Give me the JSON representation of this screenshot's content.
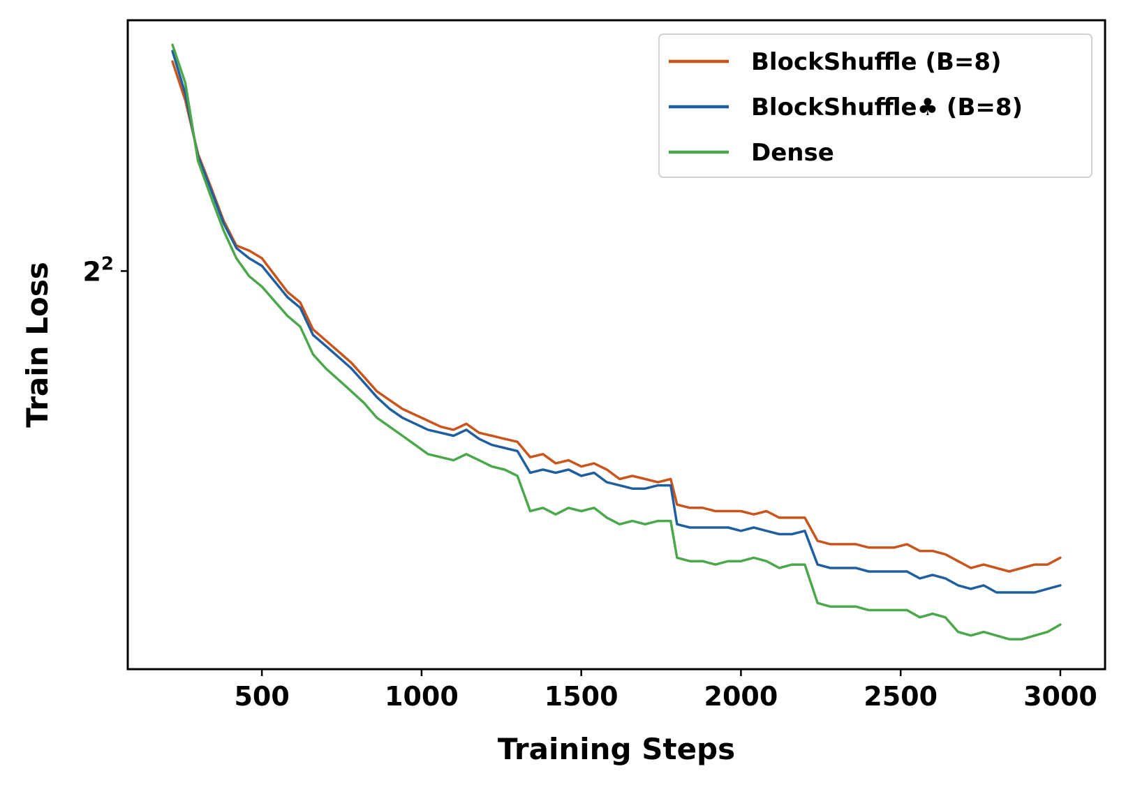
{
  "chart_data": {
    "type": "line",
    "xlabel": "Training Steps",
    "ylabel": "Train Loss",
    "xlim": [
      80,
      3140
    ],
    "ylim": [
      2.72,
      5.1
    ],
    "yscale": "log2",
    "xticks": [
      500,
      1000,
      1500,
      2000,
      2500,
      3000
    ],
    "xtick_labels": [
      "500",
      "1000",
      "1500",
      "2000",
      "2500",
      "3000"
    ],
    "yticks": [
      4
    ],
    "ytick_labels": [
      {
        "base": "2",
        "exp": "2"
      }
    ],
    "grid": false,
    "legend_position": "top-right",
    "colors": {
      "BlockShuffle (B=8)": "#c9541c",
      "BlockShuffle♣ (B=8)": "#1f5fa0",
      "Dense": "#4aa84a"
    },
    "series": [
      {
        "name": "BlockShuffle (B=8)",
        "x": [
          220,
          260,
          300,
          340,
          380,
          420,
          460,
          500,
          580,
          620,
          660,
          700,
          740,
          780,
          820,
          860,
          900,
          940,
          980,
          1020,
          1060,
          1100,
          1140,
          1180,
          1220,
          1260,
          1300,
          1340,
          1380,
          1420,
          1460,
          1500,
          1540,
          1580,
          1620,
          1660,
          1700,
          1740,
          1780,
          1800,
          1840,
          1880,
          1920,
          1960,
          2000,
          2040,
          2080,
          2120,
          2160,
          2200,
          2240,
          2280,
          2320,
          2360,
          2400,
          2440,
          2480,
          2520,
          2560,
          2600,
          2640,
          2680,
          2720,
          2760,
          2800,
          2840,
          2880,
          2920,
          2960,
          3000
        ],
        "values": [
          4.9,
          4.72,
          4.48,
          4.34,
          4.2,
          4.1,
          4.08,
          4.05,
          3.92,
          3.88,
          3.78,
          3.74,
          3.7,
          3.66,
          3.61,
          3.56,
          3.53,
          3.5,
          3.48,
          3.46,
          3.44,
          3.43,
          3.45,
          3.42,
          3.41,
          3.4,
          3.39,
          3.34,
          3.35,
          3.32,
          3.33,
          3.31,
          3.32,
          3.3,
          3.27,
          3.28,
          3.27,
          3.26,
          3.27,
          3.19,
          3.18,
          3.18,
          3.17,
          3.17,
          3.17,
          3.16,
          3.17,
          3.15,
          3.15,
          3.15,
          3.08,
          3.07,
          3.07,
          3.07,
          3.06,
          3.06,
          3.06,
          3.07,
          3.05,
          3.05,
          3.04,
          3.02,
          3.0,
          3.01,
          3.0,
          2.99,
          3.0,
          3.01,
          3.01,
          3.03
        ]
      },
      {
        "name": "BlockShuffle♣ (B=8)",
        "x": [
          220,
          260,
          300,
          340,
          380,
          420,
          460,
          500,
          580,
          620,
          660,
          700,
          740,
          780,
          820,
          860,
          900,
          940,
          980,
          1020,
          1060,
          1100,
          1140,
          1180,
          1220,
          1260,
          1300,
          1340,
          1380,
          1420,
          1460,
          1500,
          1540,
          1580,
          1620,
          1660,
          1700,
          1740,
          1780,
          1800,
          1840,
          1880,
          1920,
          1960,
          2000,
          2040,
          2080,
          2120,
          2160,
          2200,
          2240,
          2280,
          2320,
          2360,
          2400,
          2440,
          2480,
          2520,
          2560,
          2600,
          2640,
          2680,
          2720,
          2760,
          2800,
          2840,
          2880,
          2920,
          2960,
          3000
        ],
        "values": [
          4.95,
          4.75,
          4.47,
          4.33,
          4.19,
          4.09,
          4.05,
          4.02,
          3.9,
          3.86,
          3.76,
          3.72,
          3.68,
          3.64,
          3.59,
          3.54,
          3.5,
          3.47,
          3.45,
          3.43,
          3.42,
          3.41,
          3.43,
          3.4,
          3.38,
          3.37,
          3.36,
          3.29,
          3.3,
          3.29,
          3.3,
          3.28,
          3.29,
          3.26,
          3.25,
          3.24,
          3.24,
          3.25,
          3.25,
          3.13,
          3.12,
          3.12,
          3.12,
          3.12,
          3.11,
          3.12,
          3.11,
          3.1,
          3.1,
          3.11,
          3.01,
          3.0,
          3.0,
          3.0,
          2.99,
          2.99,
          2.99,
          2.99,
          2.97,
          2.98,
          2.97,
          2.95,
          2.94,
          2.95,
          2.93,
          2.93,
          2.93,
          2.93,
          2.94,
          2.95
        ]
      },
      {
        "name": "Dense",
        "x": [
          220,
          260,
          300,
          340,
          380,
          420,
          460,
          500,
          580,
          620,
          660,
          700,
          740,
          780,
          820,
          860,
          900,
          940,
          980,
          1020,
          1060,
          1100,
          1140,
          1180,
          1220,
          1260,
          1300,
          1340,
          1380,
          1420,
          1460,
          1500,
          1540,
          1580,
          1620,
          1660,
          1700,
          1740,
          1780,
          1800,
          1840,
          1880,
          1920,
          1960,
          2000,
          2040,
          2080,
          2120,
          2160,
          2200,
          2240,
          2280,
          2320,
          2360,
          2400,
          2440,
          2480,
          2520,
          2560,
          2600,
          2640,
          2680,
          2720,
          2760,
          2800,
          2840,
          2880,
          2920,
          2960,
          3000
        ],
        "values": [
          4.98,
          4.8,
          4.45,
          4.3,
          4.16,
          4.05,
          3.98,
          3.94,
          3.83,
          3.79,
          3.69,
          3.64,
          3.6,
          3.56,
          3.52,
          3.47,
          3.44,
          3.41,
          3.38,
          3.35,
          3.34,
          3.33,
          3.35,
          3.33,
          3.31,
          3.3,
          3.28,
          3.17,
          3.18,
          3.16,
          3.18,
          3.17,
          3.18,
          3.15,
          3.13,
          3.14,
          3.13,
          3.14,
          3.14,
          3.03,
          3.02,
          3.02,
          3.01,
          3.02,
          3.02,
          3.03,
          3.02,
          3.0,
          3.01,
          3.01,
          2.9,
          2.89,
          2.89,
          2.89,
          2.88,
          2.88,
          2.88,
          2.88,
          2.86,
          2.87,
          2.86,
          2.82,
          2.81,
          2.82,
          2.81,
          2.8,
          2.8,
          2.81,
          2.82,
          2.84
        ]
      }
    ],
    "legend": [
      {
        "label": "BlockShuffle (B=8)",
        "color": "#c9541c"
      },
      {
        "label": "BlockShuffle♣ (B=8)",
        "color": "#1f5fa0"
      },
      {
        "label": "Dense",
        "color": "#4aa84a"
      }
    ]
  }
}
